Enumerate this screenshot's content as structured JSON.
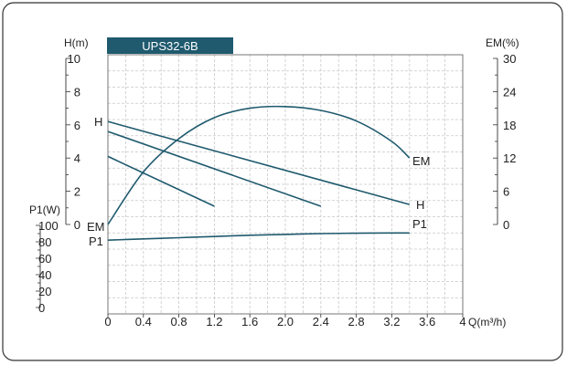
{
  "chart_data": {
    "type": "line",
    "title": "UPS32-6B",
    "xlabel": "Q(m³/h)",
    "x_ticks": [
      "0",
      "0.4",
      "0.8",
      "1.2",
      "1.6",
      "2.0",
      "2.4",
      "2.8",
      "3.2",
      "3.6",
      "4"
    ],
    "xlim": [
      0,
      4
    ],
    "grid": true,
    "axes": {
      "H": {
        "label": "H(m)",
        "range": [
          0,
          10
        ],
        "ticks": [
          "0",
          "2",
          "4",
          "6",
          "8",
          "10"
        ]
      },
      "EM": {
        "label": "EM(%)",
        "range": [
          0,
          30
        ],
        "ticks": [
          "0",
          "6",
          "12",
          "18",
          "24",
          "30"
        ]
      },
      "P1": {
        "label": "P1(W)",
        "range": [
          0,
          100
        ],
        "ticks": [
          "0",
          "20",
          "40",
          "60",
          "80",
          "100"
        ]
      }
    },
    "series": [
      {
        "name": "H",
        "axis": "H",
        "x": [
          0,
          3.4
        ],
        "y": [
          6.2,
          1.2
        ]
      },
      {
        "name": "",
        "axis": "H",
        "x": [
          0,
          2.4
        ],
        "y": [
          5.6,
          1.1
        ]
      },
      {
        "name": "",
        "axis": "H",
        "x": [
          0,
          1.2
        ],
        "y": [
          4.1,
          1.1
        ]
      },
      {
        "name": "EM",
        "axis": "EM",
        "x": [
          0,
          0.4,
          0.8,
          1.2,
          1.6,
          2.0,
          2.4,
          2.8,
          3.2,
          3.4
        ],
        "y": [
          0,
          9.5,
          15.5,
          19.3,
          21.0,
          21.3,
          20.6,
          18.7,
          15.0,
          12.0
        ]
      },
      {
        "name": "P1",
        "axis": "P1",
        "x": [
          0,
          0.4,
          0.8,
          1.2,
          1.6,
          2.0,
          2.4,
          2.8,
          3.2,
          3.4
        ],
        "y": [
          82,
          83.5,
          85,
          86.5,
          88,
          89,
          90,
          90.5,
          90.8,
          90.8
        ]
      }
    ],
    "curve_labels": {
      "H_left": "H",
      "EM_left": "EM",
      "P1_left": "P1",
      "EM_right": "EM",
      "H_right": "H",
      "P1_right": "P1"
    }
  }
}
